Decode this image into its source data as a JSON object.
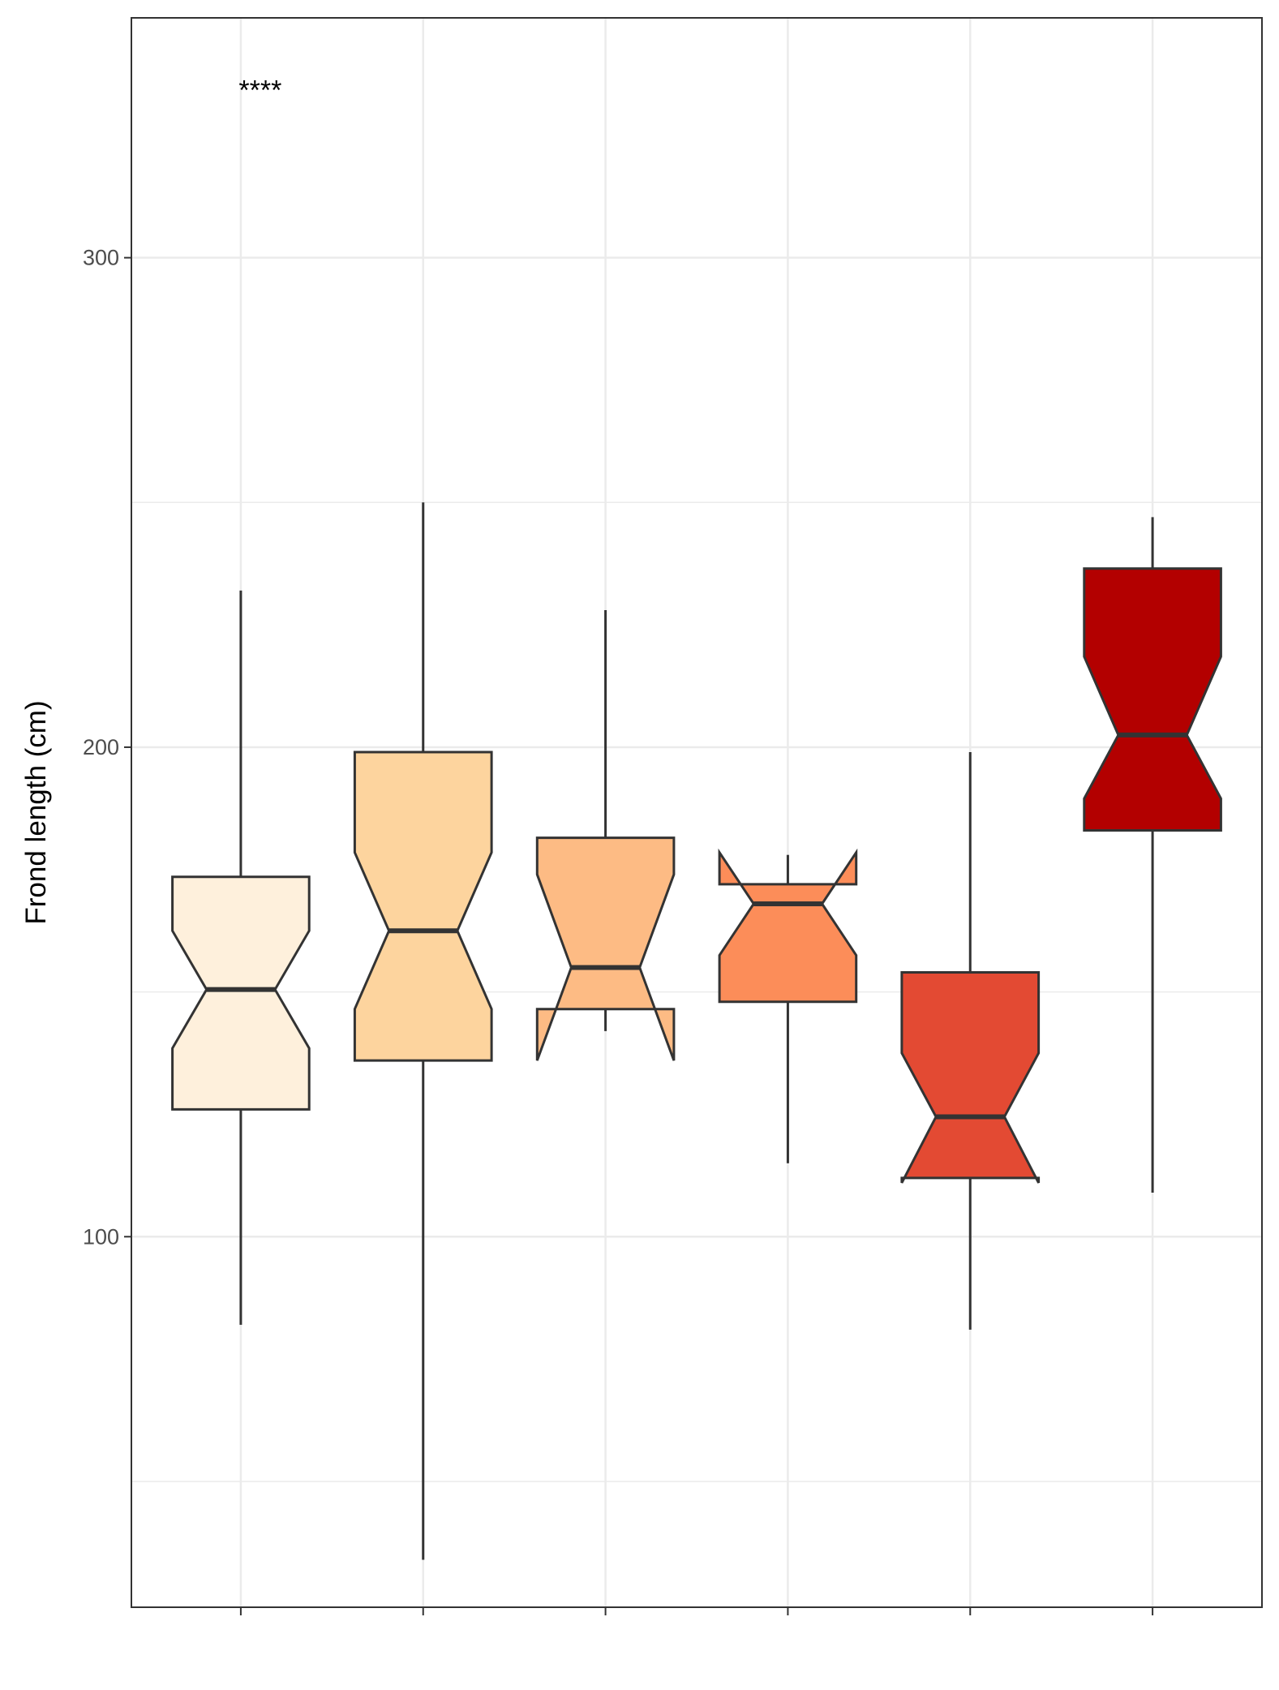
{
  "chart_data": {
    "type": "box",
    "notched": true,
    "title": "",
    "xlabel": "",
    "ylabel": "Frond length (cm)",
    "ylim": [
      24.3,
      349
    ],
    "y_ticks": [
      100,
      200,
      300
    ],
    "y_minor_ticks": [
      50,
      150,
      250
    ],
    "grid": true,
    "legend": "none",
    "annotation": {
      "text": "****",
      "category_index": 0,
      "y": 336
    },
    "categories": [
      "",
      "",
      "",
      "",
      "",
      ""
    ],
    "boxes": [
      {
        "whisker_low": 82,
        "q1": 126,
        "median": 150.5,
        "q3": 173.5,
        "whisker_high": 232,
        "notch_low": 138.5,
        "notch_high": 162.5,
        "fill": "#fef0dc"
      },
      {
        "whisker_low": 34,
        "q1": 136,
        "median": 162.5,
        "q3": 199,
        "whisker_high": 250,
        "notch_low": 146.5,
        "notch_high": 178.5,
        "fill": "#fdd49e"
      },
      {
        "whisker_low": 142,
        "q1": 146.5,
        "median": 155,
        "q3": 181.5,
        "whisker_high": 228,
        "notch_low": 136,
        "notch_high": 174,
        "fill": "#fdbb84"
      },
      {
        "whisker_low": 115,
        "q1": 148,
        "median": 168,
        "q3": 172,
        "whisker_high": 178,
        "notch_low": 157.5,
        "notch_high": 178.5,
        "fill": "#fc8d59"
      },
      {
        "whisker_low": 81,
        "q1": 112,
        "median": 124.5,
        "q3": 154,
        "whisker_high": 199,
        "notch_low": 111,
        "notch_high": 137.5,
        "fill": "#e34a33"
      },
      {
        "whisker_low": 109,
        "q1": 183,
        "median": 202.5,
        "q3": 236.5,
        "whisker_high": 247,
        "notch_low": 189.5,
        "notch_high": 218.5,
        "fill": "#b30000"
      }
    ]
  },
  "colors": {
    "panel_border": "#333333",
    "grid": "#ebebeb",
    "box_line": "#333333"
  }
}
